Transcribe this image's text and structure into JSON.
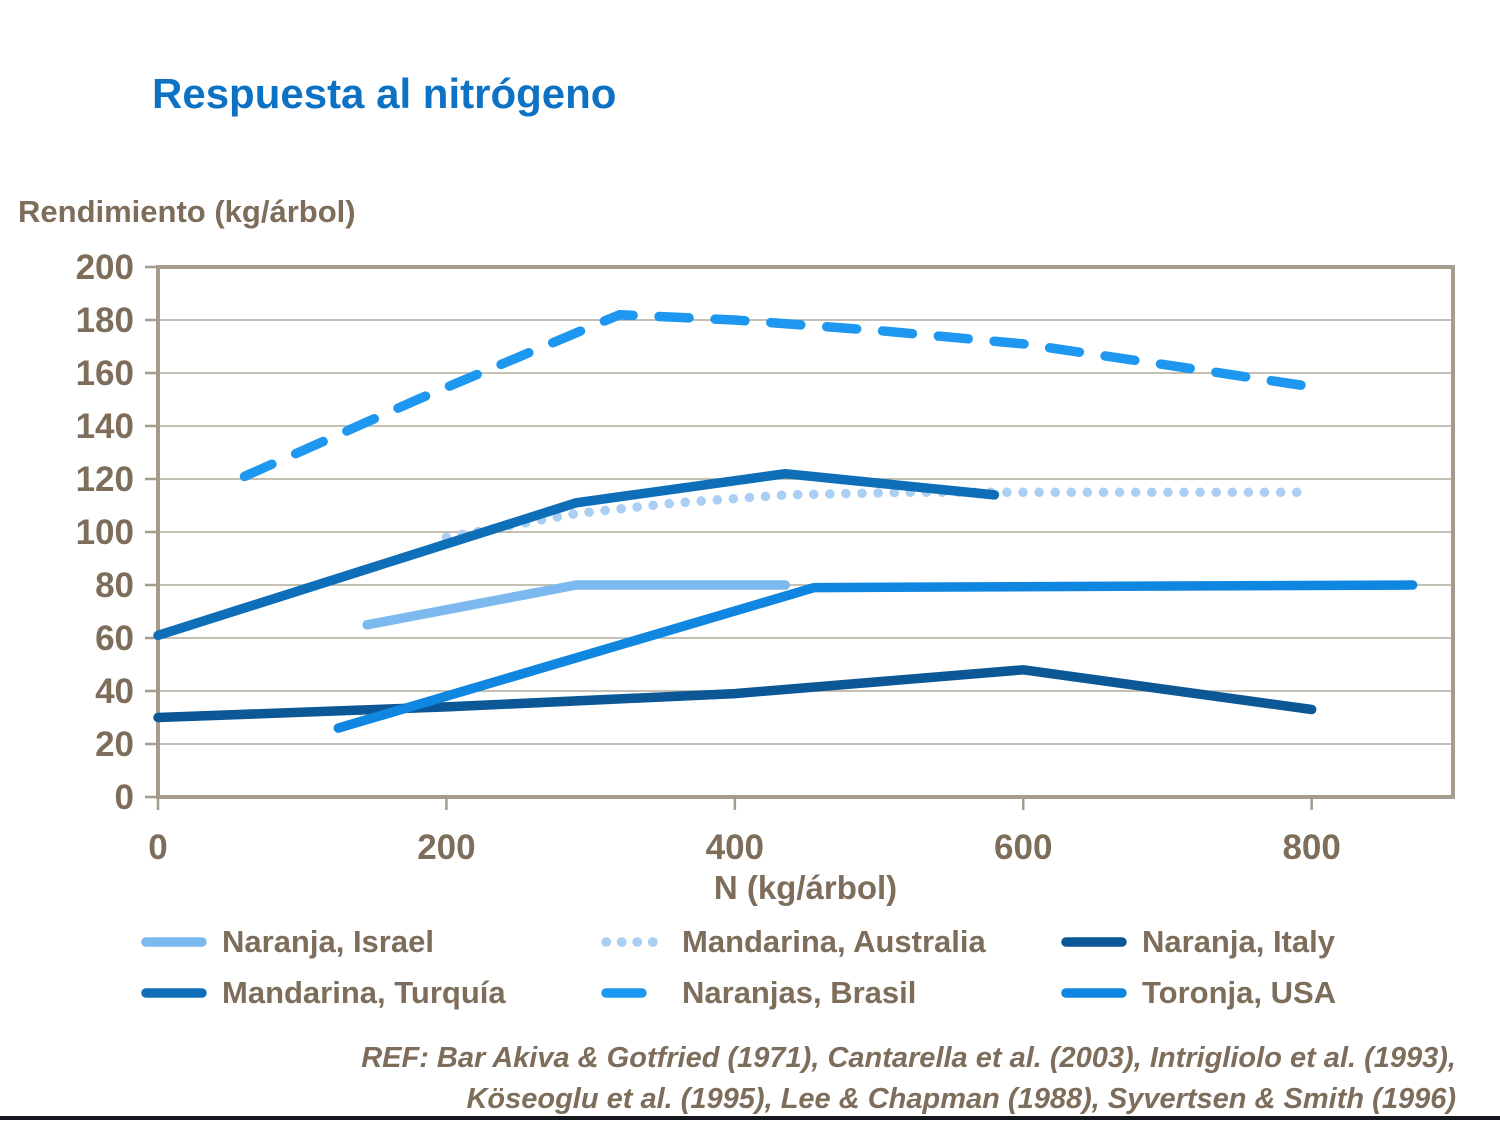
{
  "page": {
    "title": "Respuesta al nitrógeno",
    "title_color": "#0d72c4",
    "axis_text_color": "#7d6d5a",
    "bottom_rule_color": "#15181c"
  },
  "chart_data": {
    "type": "line",
    "title": "Respuesta al nitrógeno",
    "xlabel": "N (kg/árbol)",
    "ylabel": "Rendimiento (kg/árbol)",
    "xlim": [
      0,
      898
    ],
    "ylim": [
      0,
      200
    ],
    "x_ticks": [
      0,
      200,
      400,
      600,
      800
    ],
    "y_ticks": [
      0,
      20,
      40,
      60,
      80,
      100,
      120,
      140,
      160,
      180,
      200
    ],
    "grid": "horizontal",
    "gridline_color": "#b3aa9c",
    "frame_color": "#a59c8e",
    "legend_position": "bottom",
    "series": [
      {
        "name": "Naranja, Israel",
        "color": "#7cb9ee",
        "line_style": "solid",
        "points": [
          [
            145,
            65
          ],
          [
            290,
            80
          ],
          [
            435,
            80
          ]
        ]
      },
      {
        "name": "Mandarina, Australia",
        "color": "#abcff3",
        "line_style": "dotted",
        "points": [
          [
            200,
            98
          ],
          [
            290,
            107
          ],
          [
            360,
            111
          ],
          [
            435,
            114
          ],
          [
            520,
            115
          ],
          [
            660,
            115
          ],
          [
            800,
            115
          ]
        ]
      },
      {
        "name": "Naranja, Italy",
        "color": "#0c5795",
        "line_style": "solid",
        "points": [
          [
            0,
            30
          ],
          [
            200,
            34
          ],
          [
            400,
            39
          ],
          [
            600,
            48
          ],
          [
            800,
            33
          ]
        ]
      },
      {
        "name": "Mandarina, Turquía",
        "color": "#0e6fb8",
        "line_style": "solid",
        "points": [
          [
            0,
            61
          ],
          [
            290,
            111
          ],
          [
            435,
            122
          ],
          [
            580,
            114
          ]
        ]
      },
      {
        "name": "Naranjas, Brasil",
        "color": "#1e97f0",
        "line_style": "dashed",
        "points": [
          [
            60,
            121
          ],
          [
            180,
            150
          ],
          [
            250,
            166
          ],
          [
            320,
            182
          ],
          [
            400,
            180
          ],
          [
            500,
            176
          ],
          [
            600,
            171
          ],
          [
            700,
            163
          ],
          [
            810,
            154
          ]
        ]
      },
      {
        "name": "Toronja, USA",
        "color": "#0f86e0",
        "line_style": "solid",
        "points": [
          [
            125,
            26
          ],
          [
            455,
            79
          ],
          [
            870,
            80
          ]
        ]
      }
    ],
    "legend_order": [
      [
        "Naranja, Israel",
        "Mandarina, Australia",
        "Naranja, Italy"
      ],
      [
        "Mandarina, Turquía",
        "Naranjas, Brasil",
        "Toronja, USA"
      ]
    ]
  },
  "footer": {
    "ref_line1": "REF: Bar Akiva & Gotfried  (1971), Cantarella et al. (2003), Intrigliolo et al. (1993),",
    "ref_line2": "Köseoglu et al. (1995), Lee & Chapman (1988), Syvertsen & Smith (1996)"
  }
}
